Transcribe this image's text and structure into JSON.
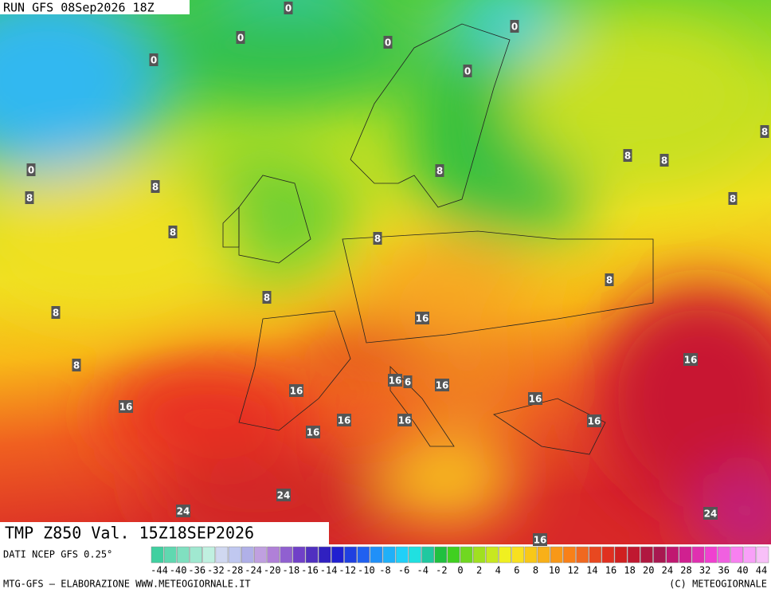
{
  "header": {
    "run": "RUN GFS 08Sep2026 18Z"
  },
  "map": {
    "title": "TMP Z850 Val. 15Z18SEP2026",
    "contour_labels": [
      "0",
      "0",
      "0",
      "0",
      "0",
      "0",
      "0",
      "8",
      "8",
      "8",
      "8",
      "8",
      "8",
      "8",
      "8",
      "8",
      "8",
      "8",
      "8",
      "8",
      "16",
      "16",
      "16",
      "16",
      "6",
      "16",
      "16",
      "16",
      "16",
      "16",
      "16",
      "16",
      "16",
      "24",
      "24",
      "24"
    ]
  },
  "legend": {
    "source": "DATI NCEP GFS 0.25°",
    "labels": [
      "-44",
      "-40",
      "-36",
      "-32",
      "-28",
      "-24",
      "-20",
      "-18",
      "-16",
      "-14",
      "-12",
      "-10",
      "-8",
      "-6",
      "-4",
      "-2",
      "0",
      "2",
      "4",
      "6",
      "8",
      "10",
      "12",
      "14",
      "16",
      "18",
      "20",
      "24",
      "28",
      "32",
      "36",
      "40",
      "44"
    ]
  },
  "footer": {
    "credit": "MTG-GFS — ELABORAZIONE WWW.METEOGIORNALE.IT",
    "copyright": "(C) METEOGIORNALE"
  }
}
